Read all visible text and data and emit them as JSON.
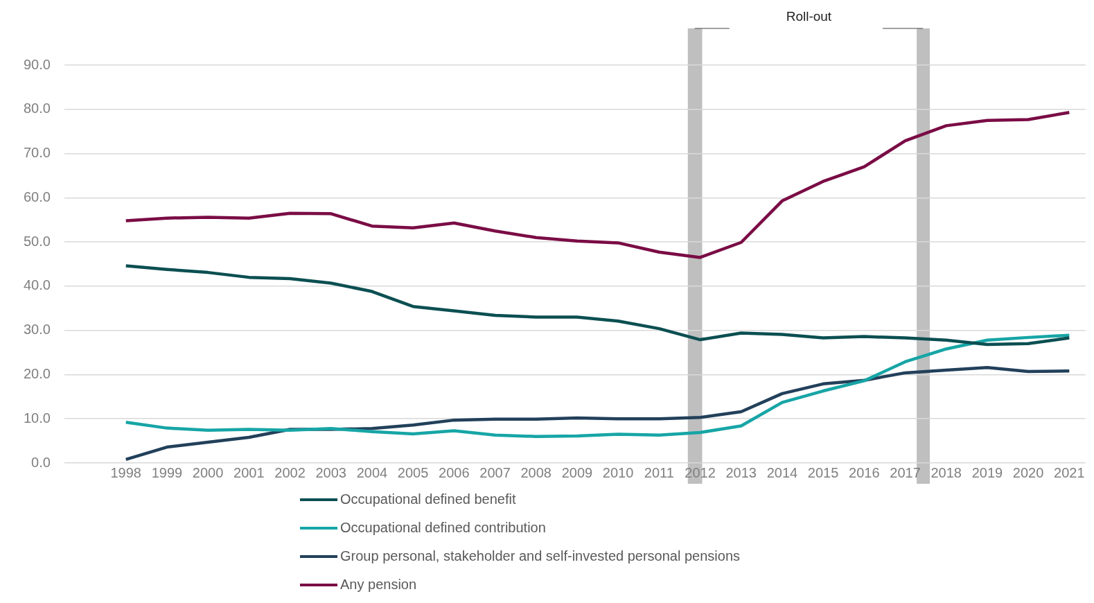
{
  "chart_data": {
    "type": "line",
    "x": [
      1998,
      1999,
      2000,
      2001,
      2002,
      2003,
      2004,
      2005,
      2006,
      2007,
      2008,
      2009,
      2010,
      2011,
      2012,
      2013,
      2014,
      2015,
      2016,
      2017,
      2018,
      2019,
      2020,
      2021
    ],
    "series": [
      {
        "name": "Occupational defined benefit",
        "color": "#0b4f52",
        "values": [
          44.6,
          43.8,
          43.1,
          42.0,
          41.7,
          40.7,
          38.8,
          35.4,
          34.4,
          33.4,
          33.0,
          33.0,
          32.1,
          30.4,
          27.9,
          29.4,
          29.1,
          28.3,
          28.6,
          28.3,
          27.8,
          26.8,
          27.0,
          28.3
        ]
      },
      {
        "name": "Occupational defined contribution",
        "color": "#17a5a6",
        "values": [
          9.2,
          7.9,
          7.4,
          7.6,
          7.4,
          7.8,
          7.1,
          6.6,
          7.3,
          6.3,
          6.0,
          6.1,
          6.5,
          6.3,
          6.9,
          8.4,
          13.7,
          16.3,
          18.6,
          22.9,
          25.8,
          27.8,
          28.4,
          28.9
        ]
      },
      {
        "name": "Group personal, stakeholder and self-invested personal pensions",
        "color": "#22405a",
        "values": [
          0.8,
          3.6,
          4.7,
          5.8,
          7.6,
          7.6,
          7.8,
          8.6,
          9.7,
          9.9,
          9.9,
          10.2,
          10.0,
          10.0,
          10.3,
          11.6,
          15.7,
          17.9,
          18.7,
          20.4,
          21.0,
          21.6,
          20.7,
          20.8
        ]
      },
      {
        "name": "Any pension",
        "color": "#7a0c45",
        "values": [
          54.8,
          55.4,
          55.6,
          55.4,
          56.5,
          56.4,
          53.6,
          53.2,
          54.3,
          52.5,
          51.0,
          50.2,
          49.8,
          47.7,
          46.5,
          49.9,
          59.3,
          63.7,
          67.0,
          72.9,
          76.3,
          77.5,
          77.7,
          79.3
        ]
      }
    ],
    "xlim": [
      1996.5,
      2021.4
    ],
    "xticks": [
      1998,
      1999,
      2000,
      2001,
      2002,
      2003,
      2004,
      2005,
      2006,
      2007,
      2008,
      2009,
      2010,
      2011,
      2012,
      2013,
      2014,
      2015,
      2016,
      2017,
      2018,
      2019,
      2020,
      2021
    ],
    "ylim": [
      0,
      90
    ],
    "yticks": [
      {
        "value": 0,
        "label": "0.0"
      },
      {
        "value": 10,
        "label": "10.0"
      },
      {
        "value": 20,
        "label": "20.0"
      },
      {
        "value": 30,
        "label": "30.0"
      },
      {
        "value": 40,
        "label": "40.0"
      },
      {
        "value": 50,
        "label": "50.0"
      },
      {
        "value": 60,
        "label": "60.0"
      },
      {
        "value": 70,
        "label": "70.0"
      },
      {
        "value": 80,
        "label": "80.0"
      },
      {
        "value": 90,
        "label": "90.0"
      }
    ],
    "bands": [
      {
        "axis": "x",
        "from": 2011.7,
        "to": 2012.05,
        "color": "#bfbfbf"
      },
      {
        "axis": "x",
        "from": 2017.28,
        "to": 2017.6,
        "color": "#bfbfbf"
      }
    ],
    "annotations": [
      "Roll-out"
    ],
    "grid": "y",
    "legend": "bottom",
    "marker": "none",
    "line_style": "solid"
  }
}
